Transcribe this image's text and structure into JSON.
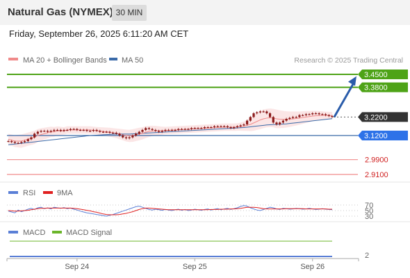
{
  "header": {
    "title": "Natural Gas (NYMEX)",
    "timeframe": "30 MIN",
    "datetime": "Friday, September 26, 2025 6:11:20 AM CET"
  },
  "colors": {
    "resistance": "#4ea317",
    "support": "#f08a8a",
    "current": "#333333",
    "pivot": "#2d72e8",
    "arrow": "#2a5caa",
    "candle": "#8b1a1a",
    "ma20": "#f08a8a",
    "ma50": "#3a6aa8",
    "bollinger_fill": "#fbe3e3",
    "rsi": "#5a7fd6",
    "rsi_ma": "#e02020",
    "macd": "#5a7fd6",
    "macd_signal": "#6bb52a"
  },
  "chart_data": [
    {
      "type": "candlestick",
      "legend": [
        {
          "label": "MA 20 + Bollinger Bands",
          "color": "#f08a8a"
        },
        {
          "label": "MA 50",
          "color": "#3a6aa8"
        }
      ],
      "credit": "Research © 2025 Trading Central",
      "x_ticks": [
        "Sep 24",
        "Sep 25",
        "Sep 26"
      ],
      "price_levels": [
        {
          "value": 3.45,
          "label": "3.4500",
          "kind": "resistance"
        },
        {
          "value": 3.38,
          "label": "3.3800",
          "kind": "resistance"
        },
        {
          "value": 3.22,
          "label": "3.2200",
          "kind": "current"
        },
        {
          "value": 3.12,
          "label": "3.1200",
          "kind": "pivot"
        },
        {
          "value": 2.99,
          "label": "2.9900",
          "kind": "support"
        },
        {
          "value": 2.91,
          "label": "2.9100",
          "kind": "support"
        }
      ],
      "close": [
        3.09,
        3.085,
        3.08,
        3.08,
        3.085,
        3.09,
        3.1,
        3.11,
        3.13,
        3.14,
        3.145,
        3.145,
        3.14,
        3.145,
        3.15,
        3.15,
        3.145,
        3.15,
        3.15,
        3.155,
        3.155,
        3.15,
        3.15,
        3.15,
        3.145,
        3.145,
        3.15,
        3.145,
        3.14,
        3.14,
        3.14,
        3.135,
        3.135,
        3.13,
        3.12,
        3.11,
        3.105,
        3.11,
        3.12,
        3.13,
        3.14,
        3.15,
        3.16,
        3.155,
        3.15,
        3.145,
        3.14,
        3.145,
        3.15,
        3.15,
        3.15,
        3.15,
        3.155,
        3.155,
        3.155,
        3.155,
        3.16,
        3.16,
        3.16,
        3.16,
        3.165,
        3.165,
        3.165,
        3.17,
        3.17,
        3.17,
        3.17,
        3.165,
        3.16,
        3.165,
        3.17,
        3.175,
        3.18,
        3.2,
        3.22,
        3.24,
        3.245,
        3.25,
        3.25,
        3.24,
        3.22,
        3.19,
        3.18,
        3.19,
        3.2,
        3.21,
        3.215,
        3.22,
        3.22,
        3.23,
        3.23,
        3.235,
        3.235,
        3.24,
        3.24,
        3.235,
        3.235,
        3.23,
        3.225,
        3.22
      ],
      "ma20": [
        3.1,
        3.095,
        3.09,
        3.09,
        3.09,
        3.095,
        3.1,
        3.105,
        3.11,
        3.12,
        3.125,
        3.13,
        3.135,
        3.14,
        3.14,
        3.145,
        3.145,
        3.145,
        3.15,
        3.15,
        3.15,
        3.15,
        3.15,
        3.15,
        3.15,
        3.15,
        3.148,
        3.146,
        3.144,
        3.142,
        3.14,
        3.138,
        3.135,
        3.132,
        3.128,
        3.124,
        3.12,
        3.118,
        3.12,
        3.124,
        3.128,
        3.132,
        3.138,
        3.142,
        3.145,
        3.146,
        3.146,
        3.146,
        3.147,
        3.148,
        3.149,
        3.15,
        3.151,
        3.152,
        3.153,
        3.154,
        3.155,
        3.156,
        3.157,
        3.158,
        3.159,
        3.16,
        3.161,
        3.162,
        3.163,
        3.164,
        3.165,
        3.165,
        3.165,
        3.165,
        3.166,
        3.168,
        3.17,
        3.175,
        3.18,
        3.188,
        3.196,
        3.204,
        3.21,
        3.214,
        3.216,
        3.214,
        3.21,
        3.208,
        3.207,
        3.207,
        3.208,
        3.21,
        3.212,
        3.214,
        3.217,
        3.22,
        3.222,
        3.225,
        3.227,
        3.228,
        3.229,
        3.229,
        3.228,
        3.227
      ],
      "ma50": [
        3.07,
        3.072,
        3.074,
        3.076,
        3.078,
        3.08,
        3.082,
        3.084,
        3.086,
        3.088,
        3.09,
        3.092,
        3.094,
        3.096,
        3.098,
        3.1,
        3.102,
        3.104,
        3.106,
        3.108,
        3.11,
        3.112,
        3.114,
        3.116,
        3.118,
        3.12,
        3.121,
        3.122,
        3.123,
        3.124,
        3.125,
        3.126,
        3.127,
        3.128,
        3.128,
        3.128,
        3.128,
        3.128,
        3.129,
        3.13,
        3.131,
        3.132,
        3.133,
        3.134,
        3.135,
        3.136,
        3.137,
        3.138,
        3.139,
        3.14,
        3.141,
        3.142,
        3.143,
        3.144,
        3.145,
        3.146,
        3.147,
        3.148,
        3.149,
        3.15,
        3.151,
        3.152,
        3.153,
        3.154,
        3.155,
        3.156,
        3.157,
        3.158,
        3.159,
        3.16,
        3.161,
        3.162,
        3.163,
        3.165,
        3.167,
        3.169,
        3.171,
        3.173,
        3.175,
        3.177,
        3.178,
        3.179,
        3.18,
        3.181,
        3.182,
        3.183,
        3.185,
        3.187,
        3.189,
        3.191,
        3.193,
        3.195,
        3.197,
        3.199,
        3.201,
        3.203,
        3.205,
        3.207,
        3.209,
        3.211
      ],
      "band_width": [
        0.03,
        0.03,
        0.032,
        0.034,
        0.036,
        0.036,
        0.036,
        0.036,
        0.036,
        0.035,
        0.034,
        0.032,
        0.03,
        0.028,
        0.026,
        0.024,
        0.022,
        0.02,
        0.02,
        0.02,
        0.02,
        0.02,
        0.02,
        0.02,
        0.02,
        0.02,
        0.02,
        0.02,
        0.021,
        0.022,
        0.023,
        0.024,
        0.025,
        0.026,
        0.028,
        0.03,
        0.032,
        0.033,
        0.034,
        0.034,
        0.034,
        0.033,
        0.032,
        0.03,
        0.028,
        0.026,
        0.024,
        0.022,
        0.02,
        0.02,
        0.02,
        0.02,
        0.02,
        0.02,
        0.02,
        0.02,
        0.02,
        0.02,
        0.02,
        0.02,
        0.02,
        0.02,
        0.02,
        0.02,
        0.02,
        0.02,
        0.02,
        0.02,
        0.02,
        0.02,
        0.02,
        0.022,
        0.025,
        0.03,
        0.036,
        0.042,
        0.046,
        0.05,
        0.05,
        0.05,
        0.05,
        0.05,
        0.05,
        0.048,
        0.046,
        0.044,
        0.042,
        0.04,
        0.038,
        0.036,
        0.034,
        0.032,
        0.03,
        0.028,
        0.026,
        0.024,
        0.022,
        0.02,
        0.02,
        0.02
      ]
    },
    {
      "type": "line",
      "name": "RSI",
      "legend": [
        {
          "label": "RSI",
          "color": "#5a7fd6"
        },
        {
          "label": "9MA",
          "color": "#e02020"
        }
      ],
      "levels": [
        70,
        50,
        30
      ],
      "level_labels": [
        "70",
        "50",
        "30"
      ],
      "ylim": [
        15,
        85
      ],
      "rsi": [
        48,
        45,
        42,
        52,
        46,
        50,
        55,
        58,
        54,
        60,
        62,
        57,
        60,
        56,
        62,
        60,
        58,
        61,
        57,
        59,
        55,
        52,
        48,
        45,
        42,
        40,
        38,
        36,
        34,
        32,
        30,
        33,
        36,
        40,
        44,
        48,
        52,
        56,
        60,
        64,
        66,
        62,
        58,
        54,
        52,
        55,
        53,
        51,
        54,
        52,
        50,
        53,
        55,
        51,
        54,
        50,
        52,
        55,
        53,
        51,
        54,
        56,
        52,
        55,
        57,
        53,
        56,
        58,
        54,
        57,
        60,
        65,
        68,
        66,
        60,
        56,
        52,
        50,
        54,
        58,
        62,
        60,
        56,
        54,
        58,
        57,
        55,
        56,
        58,
        57,
        55,
        56,
        58,
        56,
        54,
        55,
        57,
        55,
        54,
        53
      ],
      "ma9": [
        50,
        49,
        48,
        48,
        49,
        50,
        51,
        53,
        55,
        57,
        58,
        58,
        59,
        59,
        59,
        59,
        59,
        59,
        59,
        59,
        58,
        57,
        55,
        53,
        51,
        49,
        46,
        44,
        41,
        38,
        36,
        35,
        35,
        35,
        36,
        38,
        40,
        43,
        46,
        50,
        54,
        57,
        59,
        59,
        58,
        57,
        56,
        55,
        54,
        53,
        53,
        53,
        53,
        53,
        53,
        53,
        53,
        53,
        53,
        53,
        53,
        53,
        54,
        54,
        54,
        55,
        55,
        55,
        56,
        56,
        57,
        58,
        60,
        62,
        62,
        62,
        61,
        59,
        57,
        56,
        56,
        56,
        56,
        56,
        56,
        57,
        57,
        57,
        57,
        57,
        57,
        56,
        56,
        56,
        56,
        56,
        56,
        56,
        55,
        55
      ]
    },
    {
      "type": "line",
      "name": "MACD",
      "legend": [
        {
          "label": "MACD",
          "color": "#5a7fd6"
        },
        {
          "label": "MACD Signal",
          "color": "#6bb52a"
        }
      ],
      "tick_labels": [
        "2"
      ],
      "macd": [
        0,
        0,
        0,
        0,
        0,
        0,
        0,
        0,
        0,
        0,
        0,
        0,
        0,
        0,
        0,
        0,
        0,
        0,
        0,
        0,
        0,
        0,
        0,
        0,
        0,
        0,
        0,
        0,
        0,
        0,
        0,
        0,
        0,
        0,
        0,
        0,
        0,
        0,
        0,
        0,
        0,
        0,
        0,
        0,
        0,
        0,
        0,
        0,
        0,
        0,
        0,
        0,
        0,
        0,
        0,
        0,
        0,
        0,
        0,
        0,
        0,
        0,
        0,
        0,
        0,
        0,
        0,
        0,
        0,
        0,
        0,
        0,
        0,
        0,
        0,
        0,
        0,
        0,
        0,
        0,
        0,
        0,
        0,
        0,
        0,
        0,
        0,
        0,
        0,
        0,
        0,
        0,
        0,
        0,
        0,
        0,
        0,
        0,
        0,
        0
      ],
      "macd_signal": [
        0,
        0,
        0,
        0,
        0,
        0,
        0,
        0,
        0,
        0,
        0,
        0,
        0,
        0,
        0,
        0,
        0,
        0,
        0,
        0,
        0,
        0,
        0,
        0,
        0,
        0,
        0,
        0,
        0,
        0,
        0,
        0,
        0,
        0,
        0,
        0,
        0,
        0,
        0,
        0,
        0,
        0,
        0,
        0,
        0,
        0,
        0,
        0,
        0,
        0,
        0,
        0,
        0,
        0,
        0,
        0,
        0,
        0,
        0,
        0,
        0,
        0,
        0,
        0,
        0,
        0,
        0,
        0,
        0,
        0,
        0,
        0,
        0,
        0,
        0,
        0,
        0,
        0,
        0,
        0,
        0,
        0,
        0,
        0,
        0,
        0,
        0,
        0,
        0,
        0,
        0,
        0,
        0,
        0,
        0,
        0,
        0,
        0,
        0,
        0
      ]
    }
  ]
}
